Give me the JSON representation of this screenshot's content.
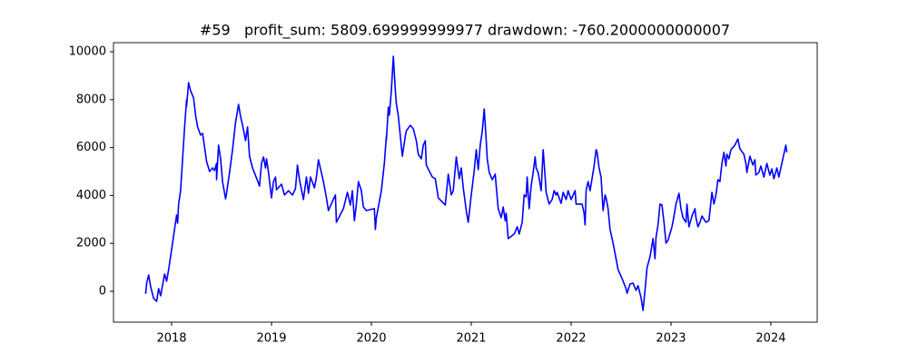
{
  "chart_data": {
    "type": "line",
    "title": "#59   profit_sum: 5809.699999999977 drawdown: -760.2000000000007",
    "color": "#0000ff",
    "xlim": [
      2017.418,
      2024.464
    ],
    "xticks": [
      2018,
      2019,
      2020,
      2021,
      2022,
      2023,
      2024
    ],
    "ylim": [
      -1290,
      10380
    ],
    "yticks": [
      0,
      2000,
      4000,
      6000,
      8000,
      10000
    ],
    "grid": false,
    "x": [
      2017.74,
      2017.75,
      2017.77,
      2017.79,
      2017.82,
      2017.85,
      2017.87,
      2017.89,
      2017.93,
      2017.95,
      2017.97,
      2018.0,
      2018.03,
      2018.05,
      2018.06,
      2018.07,
      2018.09,
      2018.11,
      2018.13,
      2018.15,
      2018.15,
      2018.17,
      2018.19,
      2018.22,
      2018.24,
      2018.26,
      2018.29,
      2018.31,
      2018.33,
      2018.35,
      2018.38,
      2018.41,
      2018.43,
      2018.45,
      2018.45,
      2018.47,
      2018.49,
      2018.51,
      2018.54,
      2018.55,
      2018.58,
      2018.61,
      2018.64,
      2018.67,
      2018.69,
      2018.72,
      2018.74,
      2018.76,
      2018.78,
      2018.81,
      2018.86,
      2018.88,
      2018.9,
      2018.92,
      2018.94,
      2018.95,
      2018.97,
      2019.0,
      2019.02,
      2019.04,
      2019.05,
      2019.1,
      2019.13,
      2019.17,
      2019.21,
      2019.24,
      2019.26,
      2019.28,
      2019.32,
      2019.35,
      2019.37,
      2019.39,
      2019.43,
      2019.45,
      2019.47,
      2019.52,
      2019.55,
      2019.57,
      2019.61,
      2019.64,
      2019.65,
      2019.72,
      2019.76,
      2019.79,
      2019.81,
      2019.83,
      2019.85,
      2019.87,
      2019.9,
      2019.92,
      2019.95,
      2020.03,
      2020.04,
      2020.05,
      2020.1,
      2020.13,
      2020.15,
      2020.15,
      2020.17,
      2020.18,
      2020.2,
      2020.22,
      2020.24,
      2020.25,
      2020.27,
      2020.29,
      2020.31,
      2020.34,
      2020.35,
      2020.39,
      2020.42,
      2020.45,
      2020.47,
      2020.5,
      2020.52,
      2020.54,
      2020.55,
      2020.61,
      2020.64,
      2020.67,
      2020.74,
      2020.77,
      2020.8,
      2020.82,
      2020.85,
      2020.88,
      2020.9,
      2020.92,
      2020.95,
      2020.97,
      2021.0,
      2021.03,
      2021.05,
      2021.07,
      2021.09,
      2021.11,
      2021.13,
      2021.15,
      2021.16,
      2021.18,
      2021.21,
      2021.24,
      2021.25,
      2021.27,
      2021.3,
      2021.32,
      2021.34,
      2021.35,
      2021.37,
      2021.43,
      2021.46,
      2021.48,
      2021.51,
      2021.53,
      2021.55,
      2021.56,
      2021.58,
      2021.6,
      2021.62,
      2021.64,
      2021.65,
      2021.67,
      2021.7,
      2021.72,
      2021.74,
      2021.75,
      2021.78,
      2021.81,
      2021.83,
      2021.85,
      2021.86,
      2021.9,
      2021.92,
      2021.95,
      2021.97,
      2022.0,
      2022.04,
      2022.05,
      2022.11,
      2022.13,
      2022.14,
      2022.15,
      2022.17,
      2022.19,
      2022.23,
      2022.25,
      2022.26,
      2022.28,
      2022.3,
      2022.32,
      2022.34,
      2022.35,
      2022.37,
      2022.39,
      2022.42,
      2022.45,
      2022.47,
      2022.51,
      2022.55,
      2022.56,
      2022.59,
      2022.62,
      2022.65,
      2022.67,
      2022.7,
      2022.72,
      2022.74,
      2022.76,
      2022.79,
      2022.82,
      2022.84,
      2022.85,
      2022.87,
      2022.89,
      2022.91,
      2022.93,
      2022.95,
      2022.97,
      2023.01,
      2023.03,
      2023.05,
      2023.08,
      2023.1,
      2023.12,
      2023.15,
      2023.16,
      2023.18,
      2023.21,
      2023.24,
      2023.25,
      2023.27,
      2023.29,
      2023.31,
      2023.35,
      2023.38,
      2023.41,
      2023.43,
      2023.45,
      2023.47,
      2023.49,
      2023.51,
      2023.53,
      2023.55,
      2023.56,
      2023.58,
      2023.6,
      2023.64,
      2023.67,
      2023.69,
      2023.73,
      2023.75,
      2023.76,
      2023.79,
      2023.82,
      2023.84,
      2023.85,
      2023.88,
      2023.9,
      2023.93,
      2023.95,
      2023.96,
      2023.99,
      2024.01,
      2024.03,
      2024.06,
      2024.08,
      2024.12,
      2024.15,
      2024.16
    ],
    "values": [
      -110,
      340,
      680,
      190,
      -300,
      -420,
      110,
      -190,
      720,
      420,
      910,
      1740,
      2610,
      3180,
      2840,
      3640,
      4200,
      5530,
      6860,
      7990,
      7730,
      8710,
      8370,
      8070,
      7350,
      6860,
      6520,
      6590,
      6020,
      5420,
      5000,
      5150,
      5040,
      5340,
      4660,
      6100,
      5530,
      4580,
      3860,
      4090,
      4960,
      5910,
      7050,
      7800,
      7310,
      6740,
      6290,
      6860,
      5640,
      5150,
      4620,
      4390,
      5340,
      5610,
      5150,
      5530,
      4960,
      3900,
      4580,
      4770,
      4240,
      4470,
      4020,
      4200,
      4020,
      4280,
      5270,
      4660,
      3830,
      4770,
      4090,
      4770,
      4320,
      4770,
      5490,
      4580,
      3900,
      3370,
      3750,
      4020,
      2880,
      3450,
      4130,
      3600,
      4200,
      2950,
      3640,
      4580,
      4200,
      3520,
      3370,
      3450,
      2580,
      3070,
      4200,
      5340,
      6480,
      6290,
      7690,
      7350,
      8370,
      9810,
      8370,
      7840,
      7310,
      6480,
      5640,
      6480,
      6700,
      6930,
      6780,
      6290,
      5720,
      5530,
      6100,
      6290,
      5270,
      4770,
      4700,
      3900,
      3600,
      4890,
      4020,
      4200,
      5610,
      4700,
      5150,
      4320,
      3370,
      2880,
      4020,
      5040,
      5910,
      5080,
      6100,
      6670,
      7610,
      6290,
      5530,
      4960,
      4660,
      4890,
      4390,
      3450,
      3070,
      3520,
      2950,
      3260,
      2200,
      2390,
      2690,
      2390,
      2880,
      4020,
      3940,
      4770,
      3450,
      4390,
      4960,
      5610,
      5150,
      4960,
      4200,
      5910,
      4770,
      4130,
      3640,
      3830,
      4200,
      4020,
      4130,
      3670,
      4130,
      3830,
      4200,
      3830,
      4200,
      3640,
      3640,
      3260,
      2770,
      4200,
      4580,
      4200,
      5230,
      5910,
      5800,
      5150,
      4770,
      3370,
      4020,
      3900,
      3450,
      2580,
      2010,
      1360,
      910,
      530,
      110,
      -80,
      300,
      340,
      40,
      230,
      -260,
      -800,
      40,
      980,
      1440,
      2200,
      1360,
      2240,
      2770,
      3640,
      3600,
      2880,
      2010,
      2120,
      2690,
      3140,
      3640,
      4090,
      3450,
      3070,
      2880,
      3640,
      2690,
      3140,
      3450,
      3070,
      2690,
      2880,
      3140,
      2880,
      2950,
      4130,
      3640,
      4020,
      4660,
      4580,
      5340,
      5800,
      5230,
      5720,
      5530,
      5910,
      6100,
      6360,
      5950,
      5720,
      5340,
      4960,
      5640,
      5270,
      5490,
      4850,
      4960,
      5230,
      4770,
      5150,
      5340,
      4850,
      5110,
      4700,
      5150,
      4770,
      5530,
      6100,
      5800
    ]
  }
}
